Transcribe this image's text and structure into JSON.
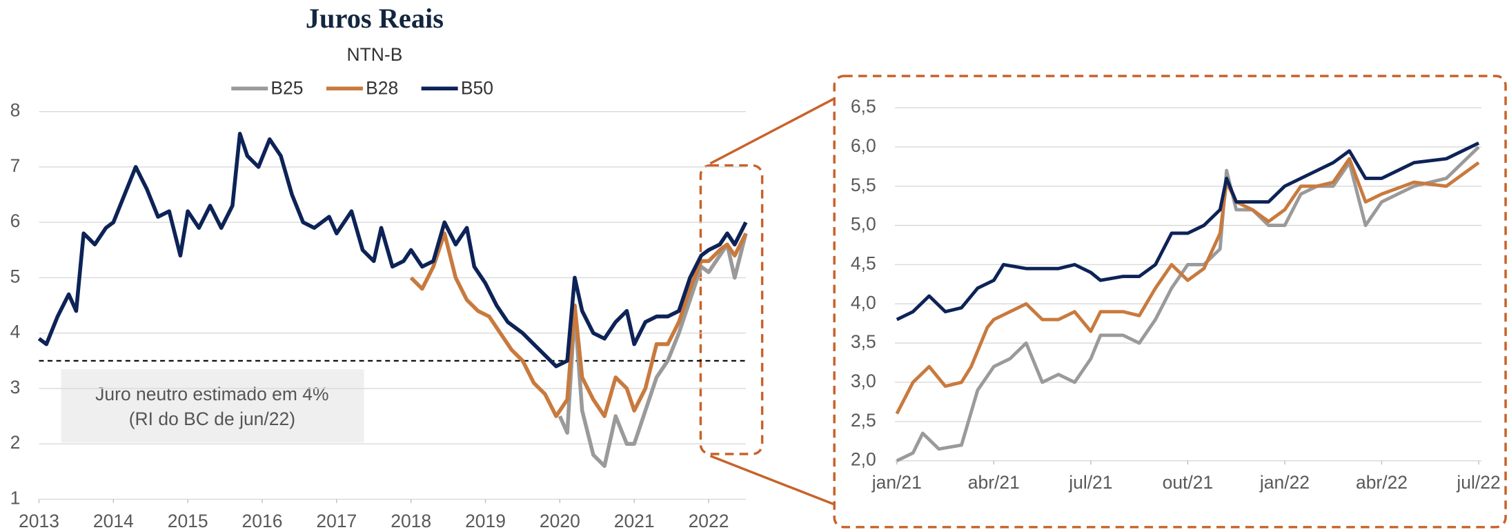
{
  "chart_data": [
    {
      "type": "line",
      "title": "Juros Reais",
      "subtitle": "NTN-B",
      "xlim": [
        2013,
        2022.5
      ],
      "xticks": [
        2013,
        2014,
        2015,
        2016,
        2017,
        2018,
        2019,
        2020,
        2021,
        2022
      ],
      "ylim": [
        1,
        8
      ],
      "yticks": [
        1,
        2,
        3,
        4,
        5,
        6,
        7,
        8
      ],
      "grid": true,
      "legend": "top",
      "hline": 3.5,
      "annotation": [
        "Juro neutro estimado em 4%",
        "(RI do BC de jun/22)"
      ],
      "series": [
        {
          "name": "B25",
          "color": "#9a9a9a",
          "x": [
            2020.0,
            2020.1,
            2020.2,
            2020.3,
            2020.45,
            2020.6,
            2020.75,
            2020.9,
            2021.0,
            2021.15,
            2021.3,
            2021.45,
            2021.6,
            2021.75,
            2021.9,
            2022.0,
            2022.15,
            2022.25,
            2022.35,
            2022.5
          ],
          "values": [
            2.5,
            2.2,
            4.4,
            2.6,
            1.8,
            1.6,
            2.5,
            2.0,
            2.0,
            2.6,
            3.2,
            3.5,
            4.0,
            4.6,
            5.2,
            5.1,
            5.4,
            5.6,
            5.0,
            5.8
          ]
        },
        {
          "name": "B28",
          "color": "#c87a3e",
          "x": [
            2018.0,
            2018.15,
            2018.3,
            2018.45,
            2018.6,
            2018.75,
            2018.9,
            2019.05,
            2019.2,
            2019.35,
            2019.5,
            2019.65,
            2019.8,
            2019.95,
            2020.1,
            2020.2,
            2020.3,
            2020.45,
            2020.6,
            2020.75,
            2020.9,
            2021.0,
            2021.15,
            2021.3,
            2021.45,
            2021.6,
            2021.75,
            2021.9,
            2022.0,
            2022.15,
            2022.25,
            2022.35,
            2022.5
          ],
          "values": [
            5.0,
            4.8,
            5.2,
            5.8,
            5.0,
            4.6,
            4.4,
            4.3,
            4.0,
            3.7,
            3.5,
            3.1,
            2.9,
            2.5,
            2.8,
            4.5,
            3.2,
            2.8,
            2.5,
            3.2,
            3.0,
            2.6,
            3.0,
            3.8,
            3.8,
            4.2,
            4.8,
            5.3,
            5.3,
            5.5,
            5.6,
            5.4,
            5.8
          ]
        },
        {
          "name": "B50",
          "color": "#0d2357",
          "x": [
            2013.0,
            2013.1,
            2013.25,
            2013.4,
            2013.5,
            2013.6,
            2013.75,
            2013.9,
            2014.0,
            2014.15,
            2014.3,
            2014.45,
            2014.6,
            2014.75,
            2014.9,
            2015.0,
            2015.15,
            2015.3,
            2015.45,
            2015.6,
            2015.7,
            2015.8,
            2015.95,
            2016.1,
            2016.25,
            2016.4,
            2016.55,
            2016.7,
            2016.9,
            2017.0,
            2017.2,
            2017.35,
            2017.5,
            2017.6,
            2017.75,
            2017.9,
            2018.0,
            2018.15,
            2018.3,
            2018.45,
            2018.6,
            2018.75,
            2018.85,
            2019.0,
            2019.15,
            2019.3,
            2019.5,
            2019.65,
            2019.8,
            2019.95,
            2020.1,
            2020.2,
            2020.3,
            2020.45,
            2020.6,
            2020.75,
            2020.9,
            2021.0,
            2021.15,
            2021.3,
            2021.45,
            2021.6,
            2021.75,
            2021.9,
            2022.0,
            2022.15,
            2022.25,
            2022.35,
            2022.5
          ],
          "values": [
            3.9,
            3.8,
            4.3,
            4.7,
            4.4,
            5.8,
            5.6,
            5.9,
            6.0,
            6.5,
            7.0,
            6.6,
            6.1,
            6.2,
            5.4,
            6.2,
            5.9,
            6.3,
            5.9,
            6.3,
            7.6,
            7.2,
            7.0,
            7.5,
            7.2,
            6.5,
            6.0,
            5.9,
            6.1,
            5.8,
            6.2,
            5.5,
            5.3,
            5.9,
            5.2,
            5.3,
            5.5,
            5.2,
            5.3,
            6.0,
            5.6,
            5.9,
            5.2,
            4.9,
            4.5,
            4.2,
            4.0,
            3.8,
            3.6,
            3.4,
            3.5,
            5.0,
            4.4,
            4.0,
            3.9,
            4.2,
            4.4,
            3.8,
            4.2,
            4.3,
            4.3,
            4.4,
            5.0,
            5.4,
            5.5,
            5.6,
            5.8,
            5.6,
            6.0
          ]
        }
      ]
    },
    {
      "type": "line",
      "xlim": [
        0,
        18
      ],
      "xticks": [
        {
          "value": 0,
          "label": "jan/21"
        },
        {
          "value": 3,
          "label": "abr/21"
        },
        {
          "value": 6,
          "label": "jul/21"
        },
        {
          "value": 9,
          "label": "out/21"
        },
        {
          "value": 12,
          "label": "jan/22"
        },
        {
          "value": 15,
          "label": "abr/22"
        },
        {
          "value": 18,
          "label": "jul/22"
        }
      ],
      "ylim": [
        2,
        6.5
      ],
      "yticks": [
        {
          "value": 2,
          "label": "2,0"
        },
        {
          "value": 2.5,
          "label": "2,5"
        },
        {
          "value": 3,
          "label": "3,0"
        },
        {
          "value": 3.5,
          "label": "3,5"
        },
        {
          "value": 4,
          "label": "4,0"
        },
        {
          "value": 4.5,
          "label": "4,5"
        },
        {
          "value": 5,
          "label": "5,0"
        },
        {
          "value": 5.5,
          "label": "5,5"
        },
        {
          "value": 6,
          "label": "6,0"
        },
        {
          "value": 6.5,
          "label": "6,5"
        }
      ],
      "grid": true,
      "series": [
        {
          "color": "#9a9a9a",
          "x": [
            0,
            0.5,
            0.8,
            1.3,
            2,
            2.5,
            3,
            3.5,
            4,
            4.5,
            5,
            5.5,
            6,
            6.3,
            7,
            7.5,
            8,
            8.5,
            9,
            9.5,
            10,
            10.2,
            10.5,
            11,
            11.5,
            12,
            12.5,
            13,
            13.5,
            14,
            14.5,
            15,
            16,
            17,
            18
          ],
          "values": [
            2.0,
            2.1,
            2.35,
            2.15,
            2.2,
            2.9,
            3.2,
            3.3,
            3.5,
            3.0,
            3.1,
            3.0,
            3.3,
            3.6,
            3.6,
            3.5,
            3.8,
            4.2,
            4.5,
            4.5,
            4.7,
            5.7,
            5.2,
            5.2,
            5.0,
            5.0,
            5.4,
            5.5,
            5.5,
            5.8,
            5.0,
            5.3,
            5.5,
            5.6,
            6.0
          ]
        },
        {
          "color": "#c87a3e",
          "x": [
            0,
            0.5,
            1,
            1.5,
            2,
            2.3,
            2.8,
            3,
            3.5,
            4,
            4.5,
            5,
            5.5,
            6,
            6.3,
            7,
            7.5,
            8,
            8.5,
            9,
            9.5,
            10,
            10.2,
            10.5,
            11,
            11.5,
            12,
            12.5,
            13,
            13.5,
            14,
            14.5,
            15,
            16,
            17,
            18
          ],
          "values": [
            2.6,
            3.0,
            3.2,
            2.95,
            3.0,
            3.2,
            3.7,
            3.8,
            3.9,
            4.0,
            3.8,
            3.8,
            3.9,
            3.65,
            3.9,
            3.9,
            3.85,
            4.2,
            4.5,
            4.3,
            4.45,
            4.9,
            5.55,
            5.3,
            5.2,
            5.05,
            5.2,
            5.5,
            5.5,
            5.55,
            5.85,
            5.3,
            5.4,
            5.55,
            5.5,
            5.8
          ]
        },
        {
          "color": "#0d2357",
          "x": [
            0,
            0.5,
            1,
            1.5,
            2,
            2.5,
            3,
            3.3,
            4,
            5,
            5.5,
            6,
            6.3,
            7,
            7.5,
            8,
            8.5,
            9,
            9.5,
            10,
            10.2,
            10.5,
            11,
            11.5,
            12,
            12.5,
            13,
            13.5,
            14,
            14.5,
            15,
            16,
            17,
            18
          ],
          "values": [
            3.8,
            3.9,
            4.1,
            3.9,
            3.95,
            4.2,
            4.3,
            4.5,
            4.45,
            4.45,
            4.5,
            4.4,
            4.3,
            4.35,
            4.35,
            4.5,
            4.9,
            4.9,
            5.0,
            5.2,
            5.6,
            5.3,
            5.3,
            5.3,
            5.5,
            5.6,
            5.7,
            5.8,
            5.95,
            5.6,
            5.6,
            5.8,
            5.85,
            6.05
          ]
        }
      ]
    }
  ]
}
